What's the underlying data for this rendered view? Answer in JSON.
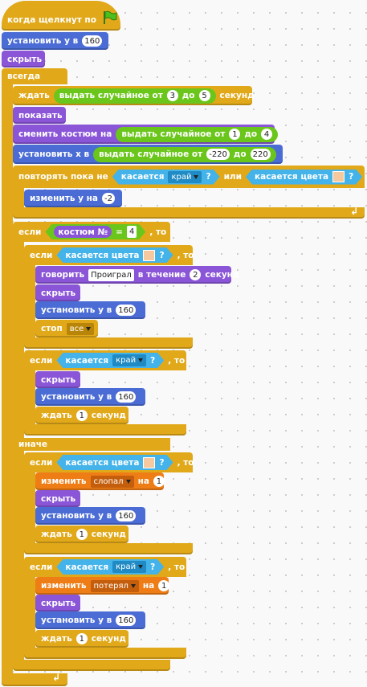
{
  "blocks": {
    "hat": {
      "label": "когда щелкнут по"
    },
    "set_y_label": "установить y в",
    "y_value": "160",
    "hide_label": "скрыть",
    "show_label": "показать",
    "forever_label": "всегда",
    "wait_label": "ждать",
    "seconds_label": "секунд",
    "random_label": "выдать случайное от",
    "to_label": "до",
    "wait_random": {
      "from": "3",
      "to": "5"
    },
    "switch_costume_label": "сменить костюм на",
    "costume_random": {
      "from": "1",
      "to": "4"
    },
    "set_x_label": "установить x в",
    "x_random": {
      "from": "-220",
      "to": "220"
    },
    "repeat_until_label": "повторять пока не",
    "touching_label": "касается",
    "edge_option": "край",
    "q_mark": "?",
    "or_label": "или",
    "touching_color_label": "касается цвета",
    "change_y_label": "изменить y на",
    "change_y_value": "-2",
    "if_label": "если",
    "then_label": ", то",
    "costume_num_label": "костюм №",
    "equals": "=",
    "costume_value": "4",
    "say_label": "говорить",
    "say_text": "Проиграл",
    "for_label": "в течение",
    "say_secs": "2",
    "stop_label": "стоп",
    "stop_option": "все",
    "wait_one": "1",
    "else_label": "иначе",
    "change_label": "изменить",
    "on_label": "на",
    "var_slopal": "слопал",
    "var_poteryal": "потерял",
    "change_value": "1",
    "accent_colors": {
      "motion": "#4a6cd4",
      "looks": "#8a55d7",
      "control": "#e1a91a",
      "operators": "#5cb712",
      "sensing": "#2ca5e2",
      "data": "#ee7d16"
    },
    "icons": {
      "flag": "green-flag-icon",
      "loop": "loop-arrow-icon",
      "dropdown": "dropdown-arrow-icon"
    }
  }
}
